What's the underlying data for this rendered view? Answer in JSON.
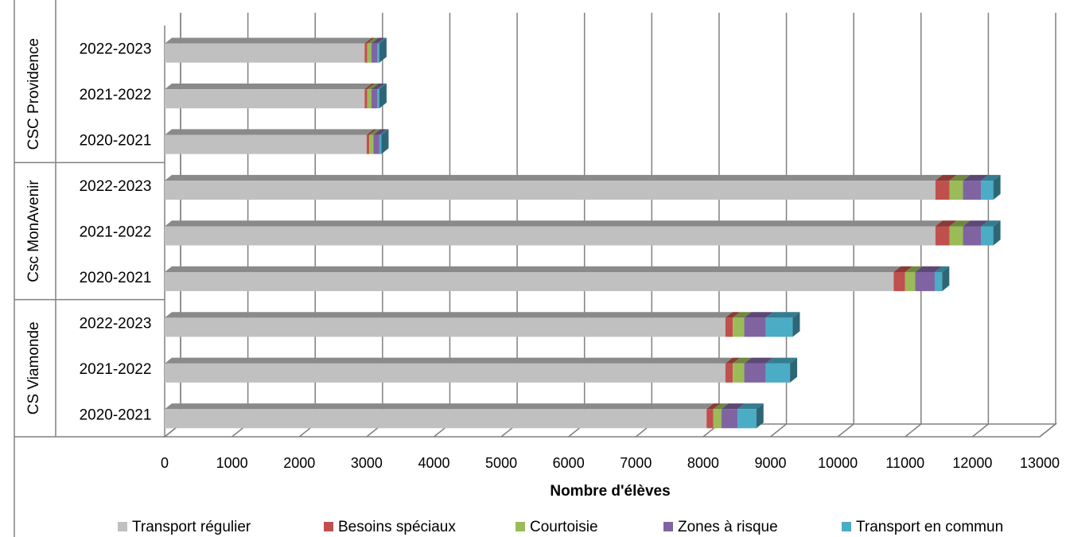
{
  "chart_data": {
    "type": "bar",
    "orientation": "horizontal",
    "stacked": true,
    "three_d": true,
    "xlabel": "Nombre d'élèves",
    "xlim": [
      0,
      13000
    ],
    "xticks": [
      0,
      1000,
      2000,
      3000,
      4000,
      5000,
      6000,
      7000,
      8000,
      9000,
      10000,
      11000,
      12000,
      13000
    ],
    "grid": true,
    "legend_position": "bottom",
    "groups": [
      "CS Viamonde",
      "Csc MonAvenir",
      "CSC Providence"
    ],
    "categories": [
      {
        "group": "CS Viamonde",
        "label": "2020-2021"
      },
      {
        "group": "CS Viamonde",
        "label": "2021-2022"
      },
      {
        "group": "CS Viamonde",
        "label": "2022-2023"
      },
      {
        "group": "Csc MonAvenir",
        "label": "2020-2021"
      },
      {
        "group": "Csc MonAvenir",
        "label": "2021-2022"
      },
      {
        "group": "Csc MonAvenir",
        "label": "2022-2023"
      },
      {
        "group": "CSC Providence",
        "label": "2020-2021"
      },
      {
        "group": "CSC Providence",
        "label": "2021-2022"
      },
      {
        "group": "CSC Providence",
        "label": "2022-2023"
      }
    ],
    "series": [
      {
        "name": "Transport régulier",
        "color": "#c0c0c0",
        "values": [
          8050,
          8330,
          8330,
          10830,
          11450,
          11450,
          3000,
          2970,
          2970
        ]
      },
      {
        "name": "Besoins spéciaux",
        "color": "#c0504d",
        "values": [
          100,
          110,
          110,
          170,
          210,
          210,
          40,
          40,
          40
        ]
      },
      {
        "name": "Courtoisie",
        "color": "#9bbb59",
        "values": [
          120,
          170,
          170,
          150,
          200,
          200,
          60,
          60,
          60
        ]
      },
      {
        "name": "Zones à risque",
        "color": "#8064a2",
        "values": [
          240,
          320,
          320,
          290,
          270,
          270,
          90,
          90,
          90
        ]
      },
      {
        "name": "Transport en commun",
        "color": "#4bacc6",
        "values": [
          280,
          360,
          400,
          110,
          180,
          180,
          30,
          30,
          30
        ]
      }
    ]
  }
}
